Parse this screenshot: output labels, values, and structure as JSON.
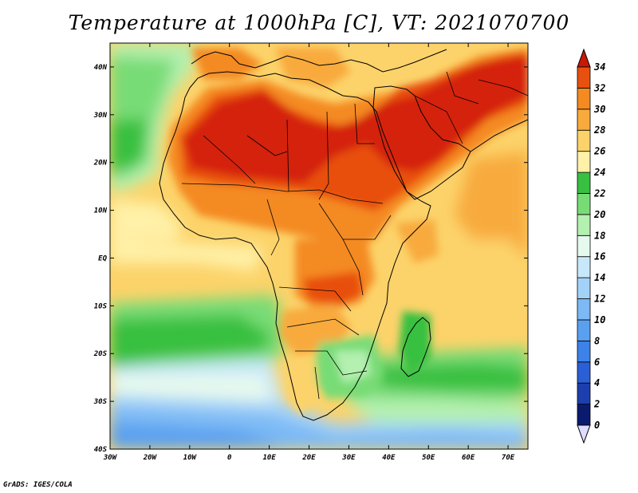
{
  "title": "Temperature at 1000hPa [C], VT: 2021070700",
  "credit": "GrADS: IGES/COLA",
  "map": {
    "lon_range": [
      -30,
      75
    ],
    "lat_range": [
      -40,
      45
    ],
    "lat_ticks": [
      {
        "value": 40,
        "label": "40N"
      },
      {
        "value": 30,
        "label": "30N"
      },
      {
        "value": 20,
        "label": "20N"
      },
      {
        "value": 10,
        "label": "10N"
      },
      {
        "value": 0,
        "label": "EQ"
      },
      {
        "value": -10,
        "label": "10S"
      },
      {
        "value": -20,
        "label": "20S"
      },
      {
        "value": -30,
        "label": "30S"
      },
      {
        "value": -40,
        "label": "40S"
      }
    ],
    "lon_ticks": [
      {
        "value": -30,
        "label": "30W"
      },
      {
        "value": -20,
        "label": "20W"
      },
      {
        "value": -10,
        "label": "10W"
      },
      {
        "value": 0,
        "label": "0"
      },
      {
        "value": 10,
        "label": "10E"
      },
      {
        "value": 20,
        "label": "20E"
      },
      {
        "value": 30,
        "label": "30E"
      },
      {
        "value": 40,
        "label": "40E"
      },
      {
        "value": 50,
        "label": "50E"
      },
      {
        "value": 60,
        "label": "60E"
      },
      {
        "value": 70,
        "label": "70E"
      }
    ]
  },
  "colorbar": {
    "levels": [
      {
        "value": 0,
        "label": "0",
        "color": "#0a1a6e"
      },
      {
        "value": 2,
        "label": "2",
        "color": "#1d3fae"
      },
      {
        "value": 4,
        "label": "4",
        "color": "#2a5fd6"
      },
      {
        "value": 6,
        "label": "6",
        "color": "#3c82e8"
      },
      {
        "value": 8,
        "label": "8",
        "color": "#5aa0f0"
      },
      {
        "value": 10,
        "label": "10",
        "color": "#7cb9f5"
      },
      {
        "value": 12,
        "label": "12",
        "color": "#a3d2f8"
      },
      {
        "value": 14,
        "label": "14",
        "color": "#c8e8fa"
      },
      {
        "value": 16,
        "label": "16",
        "color": "#e6f9ee"
      },
      {
        "value": 18,
        "label": "18",
        "color": "#b4f0b0"
      },
      {
        "value": 20,
        "label": "20",
        "color": "#78dc76"
      },
      {
        "value": 22,
        "label": "22",
        "color": "#38c040"
      },
      {
        "value": 24,
        "label": "24",
        "color": "#fff1a8"
      },
      {
        "value": 26,
        "label": "26",
        "color": "#fcd36a"
      },
      {
        "value": 28,
        "label": "28",
        "color": "#f8aa3c"
      },
      {
        "value": 30,
        "label": "30",
        "color": "#f48a20"
      },
      {
        "value": 32,
        "label": "32",
        "color": "#e85010"
      },
      {
        "value": 34,
        "label": "34",
        "color": "#d42008"
      }
    ],
    "underflow_color": "#dedcff",
    "overflow_color": "#c81808"
  }
}
